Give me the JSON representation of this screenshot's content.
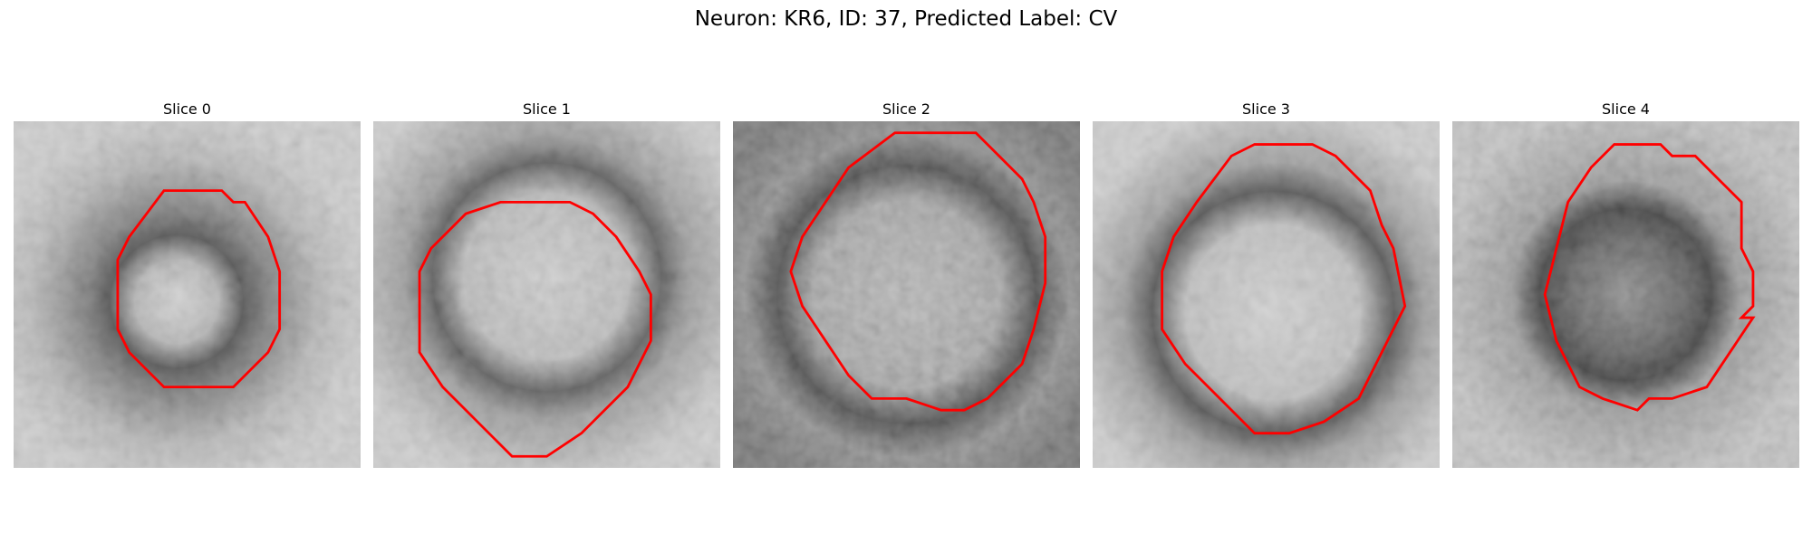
{
  "figure": {
    "suptitle": "Neuron: KR6, ID: 37, Predicted Label: CV",
    "contour_color": "#ff0000",
    "slices": [
      {
        "title": "Slice 0",
        "image": "microscopy-slice-0"
      },
      {
        "title": "Slice 1",
        "image": "microscopy-slice-1"
      },
      {
        "title": "Slice 2",
        "image": "microscopy-slice-2"
      },
      {
        "title": "Slice 3",
        "image": "microscopy-slice-3"
      },
      {
        "title": "Slice 4",
        "image": "microscopy-slice-4"
      }
    ]
  }
}
